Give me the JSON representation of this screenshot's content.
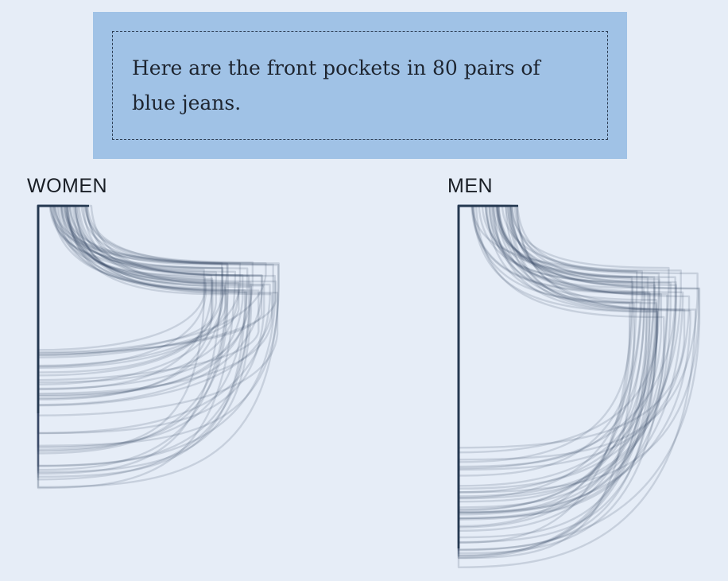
{
  "callout": {
    "text": "Here are the front pockets in 80 pairs of blue jeans."
  },
  "groups": {
    "women": {
      "label": "WOMEN"
    },
    "men": {
      "label": "MEN"
    }
  },
  "colors": {
    "background": "#e6edf7",
    "callout_fill": "#a0c2e6",
    "pocket_stroke": "#30445c"
  }
}
